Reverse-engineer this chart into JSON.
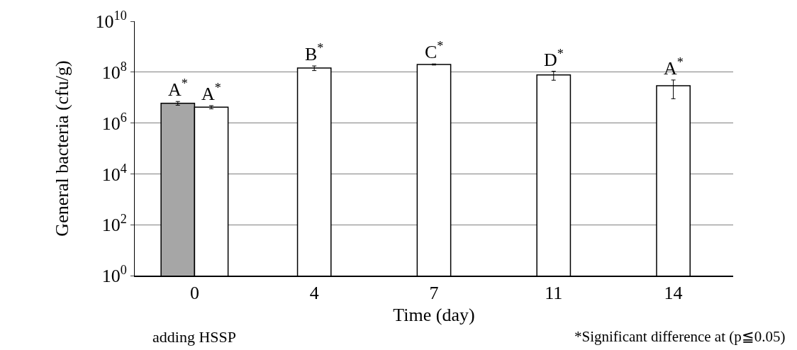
{
  "chart_data": {
    "type": "bar",
    "xlabel": "Time (day)",
    "ylabel": "General bacteria (cfu/g)",
    "categories": [
      "0",
      "4",
      "7",
      "11",
      "14"
    ],
    "series": [
      {
        "color": "#a6a6a6",
        "values": [
          6000000,
          null,
          null,
          null,
          null
        ],
        "errors": [
          1000000,
          null,
          null,
          null,
          null
        ]
      },
      {
        "color": "#ffffff",
        "values": [
          4200000,
          145000000,
          200000000,
          78000000,
          29000000
        ],
        "errors": [
          600000,
          30000000,
          10000000,
          30000000,
          20000000
        ]
      }
    ],
    "log": "y",
    "ylim": [
      1,
      10000000000
    ],
    "yticks": [
      {
        "value": 1,
        "label": "10$^{0}$"
      },
      {
        "value": 100,
        "label": "10$^{2}$"
      },
      {
        "value": 10000,
        "label": "10$^{4}$"
      },
      {
        "value": 1000000,
        "label": "10$^{6}$"
      },
      {
        "value": 100000000,
        "label": "10$^{8}$"
      },
      {
        "value": 10000000000,
        "label": "10$^{10}$"
      }
    ],
    "grid": "y",
    "annotations": [
      {
        "text": "A$^{*}$",
        "x": "0",
        "y": 7000000
      },
      {
        "text": "A$^{*}$",
        "x": "0",
        "y": 4800000
      },
      {
        "text": "B$^{*}$",
        "x": "4",
        "y": 175000000
      },
      {
        "text": "C$^{*}$",
        "x": "7",
        "y": 210000000
      },
      {
        "text": "D$^{*}$",
        "x": "11",
        "y": 108000000
      },
      {
        "text": "A$^{*}$",
        "x": "14",
        "y": 49000000
      },
      "adding HSSP",
      "*Significant difference at (p≦0.05)"
    ]
  }
}
